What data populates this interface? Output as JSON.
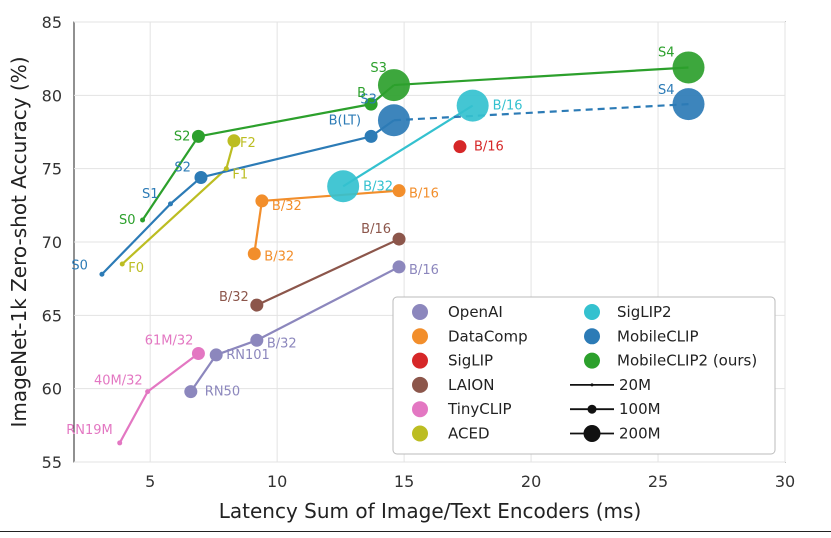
{
  "chart_data": {
    "type": "scatter",
    "xlabel": "Latency Sum of Image/Text Encoders (ms)",
    "ylabel": "ImageNet-1k Zero-shot Accuracy (%)",
    "xlim": [
      2,
      30
    ],
    "ylim": [
      55,
      85
    ],
    "xticks": [
      5,
      10,
      15,
      20,
      25,
      30
    ],
    "yticks": [
      55,
      60,
      65,
      70,
      75,
      80,
      85
    ],
    "grid": true,
    "legend_position": "bottom-right",
    "series": [
      {
        "name": "OpenAI",
        "color": "#8c87bd",
        "line": "solid",
        "points": [
          {
            "x": 6.6,
            "y": 59.8,
            "label": "RN50",
            "size": "100M"
          },
          {
            "x": 7.6,
            "y": 62.3,
            "label": "RN101",
            "size": "100M"
          },
          {
            "x": 9.2,
            "y": 63.3,
            "label": "B/32",
            "size": "100M"
          },
          {
            "x": 14.8,
            "y": 68.3,
            "label": "B/16",
            "size": "100M"
          }
        ]
      },
      {
        "name": "DataComp",
        "color": "#f28e2b",
        "line": "solid",
        "points": [
          {
            "x": 9.1,
            "y": 69.2,
            "label": "B/32",
            "size": "100M"
          },
          {
            "x": 9.4,
            "y": 72.8,
            "label": "B/32",
            "size": "100M"
          },
          {
            "x": 14.8,
            "y": 73.5,
            "label": "B/16",
            "size": "100M"
          }
        ]
      },
      {
        "name": "SigLIP",
        "color": "#d62728",
        "line": "none",
        "points": [
          {
            "x": 17.2,
            "y": 76.5,
            "label": "B/16",
            "size": "100M"
          }
        ]
      },
      {
        "name": "LAION",
        "color": "#8c564b",
        "line": "solid",
        "points": [
          {
            "x": 9.2,
            "y": 65.7,
            "label": "B/32",
            "size": "100M"
          },
          {
            "x": 14.8,
            "y": 70.2,
            "label": "B/16",
            "size": "100M"
          }
        ]
      },
      {
        "name": "TinyCLIP",
        "color": "#e377c2",
        "line": "solid",
        "points": [
          {
            "x": 3.8,
            "y": 56.3,
            "label": "RN19M",
            "size": "20M"
          },
          {
            "x": 4.9,
            "y": 59.8,
            "label": "40M/32",
            "size": "20M"
          },
          {
            "x": 6.9,
            "y": 62.4,
            "label": "61M/32",
            "size": "100M"
          }
        ]
      },
      {
        "name": "ACED",
        "color": "#bcbd22",
        "line": "solid",
        "points": [
          {
            "x": 3.9,
            "y": 68.5,
            "label": "F0",
            "size": "20M"
          },
          {
            "x": 8.0,
            "y": 75.0,
            "label": "F1",
            "size": "20M"
          },
          {
            "x": 8.3,
            "y": 76.9,
            "label": "F2",
            "size": "100M"
          }
        ]
      },
      {
        "name": "SigLIP2",
        "color": "#34c1cf",
        "line": "solid",
        "points": [
          {
            "x": 12.6,
            "y": 73.8,
            "label": "B/32",
            "size": "200M"
          },
          {
            "x": 17.7,
            "y": 79.3,
            "label": "B/16",
            "size": "200M"
          }
        ]
      },
      {
        "name": "MobileCLIP",
        "color": "#2c7bb6",
        "line": "solid",
        "points": [
          {
            "x": 3.1,
            "y": 67.8,
            "label": "S0",
            "size": "20M"
          },
          {
            "x": 5.8,
            "y": 72.6,
            "label": "S1",
            "size": "20M"
          },
          {
            "x": 7.0,
            "y": 74.4,
            "label": "S2",
            "size": "100M"
          },
          {
            "x": 13.7,
            "y": 77.2,
            "label": "B(LT)",
            "size": "100M"
          },
          {
            "x": 14.6,
            "y": 78.3,
            "label": "S3",
            "size": "200M"
          },
          {
            "x": 26.2,
            "y": 79.4,
            "label": "S4",
            "size": "200M",
            "dashed_from_previous": true
          }
        ]
      },
      {
        "name": "MobileCLIP2 (ours)",
        "color": "#2ca02c",
        "line": "solid",
        "points": [
          {
            "x": 4.7,
            "y": 71.5,
            "label": "S0",
            "size": "20M"
          },
          {
            "x": 6.9,
            "y": 77.2,
            "label": "S2",
            "size": "100M"
          },
          {
            "x": 13.7,
            "y": 79.4,
            "label": "B",
            "size": "100M"
          },
          {
            "x": 14.6,
            "y": 80.7,
            "label": "S3",
            "size": "200M"
          },
          {
            "x": 26.2,
            "y": 81.9,
            "label": "S4",
            "size": "200M"
          }
        ]
      }
    ],
    "size_legend": [
      "20M",
      "100M",
      "200M"
    ]
  },
  "colors": {
    "OpenAI": "#8c87bd",
    "DataComp": "#f28e2b",
    "SigLIP": "#d62728",
    "LAION": "#8c564b",
    "TinyCLIP": "#e377c2",
    "ACED": "#bcbd22",
    "SigLIP2": "#34c1cf",
    "MobileCLIP": "#2c7bb6",
    "MobileCLIP2": "#2ca02c"
  }
}
